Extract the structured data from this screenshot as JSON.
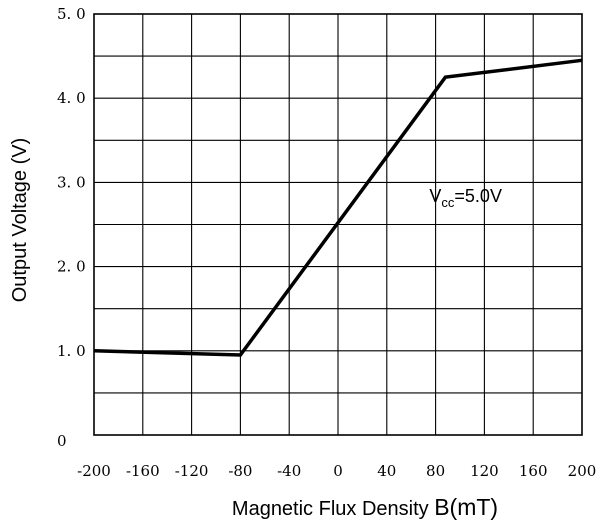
{
  "chart_data": {
    "type": "line",
    "xlabel_main": "Magnetic Flux Density ",
    "xlabel_symbol": "B(mT)",
    "ylabel": "Output Voltage (V)",
    "xlim": [
      -200,
      200
    ],
    "ylim": [
      0,
      5
    ],
    "grid": true,
    "xticks": [
      "-200",
      "-160",
      "-120",
      "-80",
      "-40",
      "0",
      "40",
      "80",
      "120",
      "160",
      "200"
    ],
    "yticks": [
      "0",
      "1. 0",
      "2. 0",
      "3. 0",
      "4. 0",
      "5. 0"
    ],
    "series": [
      {
        "x": [
          -200,
          -80,
          88,
          200
        ],
        "y": [
          1.0,
          0.95,
          4.25,
          4.45
        ]
      }
    ],
    "annotation": {
      "base": "V",
      "sub": "cc",
      "rest": "=5.0V",
      "x": 120,
      "y": 2.85
    }
  }
}
